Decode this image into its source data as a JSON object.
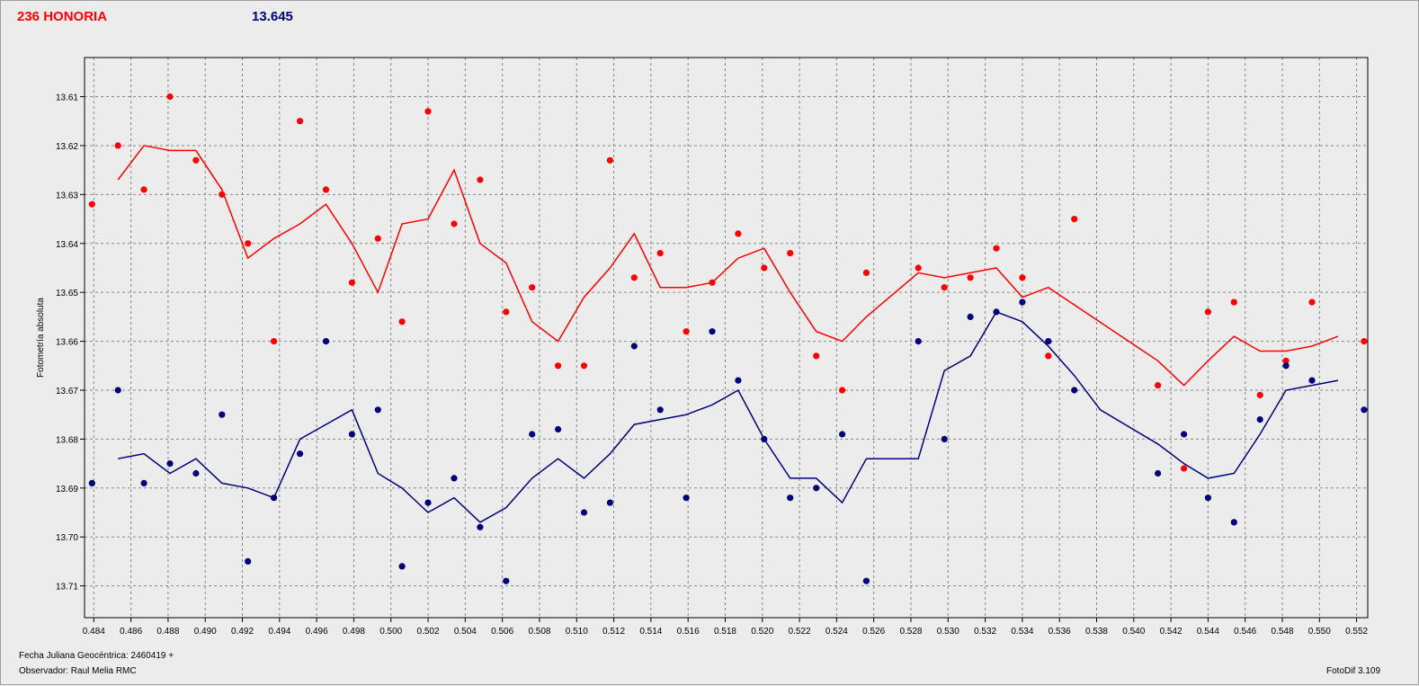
{
  "header": {
    "object_label": "236 HONORIA",
    "magnitude_label": "13.645"
  },
  "footer": {
    "jd_label": "Fecha Juliana Geocéntrica: 2460419 +",
    "observer_label": "Observador: Raul Melia RMC",
    "software_label": "FotoDif 3.109"
  },
  "colors": {
    "series_red": "#ff0000",
    "series_blue": "#00007a",
    "grid": "#888888",
    "plot_bg": "#ececec"
  },
  "chart_data": {
    "type": "scatter",
    "title": "",
    "xlabel": "",
    "ylabel": "Fotometría absoluta",
    "xlim": [
      0.4835,
      0.5526
    ],
    "ylim": [
      13.602,
      13.7165
    ],
    "y_inverted": true,
    "grid": true,
    "x_ticks": [
      "0.484",
      "0.486",
      "0.488",
      "0.490",
      "0.492",
      "0.494",
      "0.496",
      "0.498",
      "0.500",
      "0.502",
      "0.504",
      "0.506",
      "0.508",
      "0.510",
      "0.512",
      "0.514",
      "0.516",
      "0.518",
      "0.520",
      "0.522",
      "0.524",
      "0.526",
      "0.528",
      "0.530",
      "0.532",
      "0.534",
      "0.536",
      "0.538",
      "0.540",
      "0.542",
      "0.544",
      "0.546",
      "0.548",
      "0.550",
      "0.552"
    ],
    "y_ticks": [
      "13.61",
      "13.62",
      "13.63",
      "13.64",
      "13.65",
      "13.66",
      "13.67",
      "13.68",
      "13.69",
      "13.70",
      "13.71"
    ],
    "series": [
      {
        "color": "#ff0000",
        "points": [
          [
            0.4839,
            13.632
          ],
          [
            0.4853,
            13.62
          ],
          [
            0.4867,
            13.629
          ],
          [
            0.4881,
            13.61
          ],
          [
            0.4895,
            13.623
          ],
          [
            0.4909,
            13.63
          ],
          [
            0.4923,
            13.64
          ],
          [
            0.4937,
            13.66
          ],
          [
            0.4951,
            13.615
          ],
          [
            0.4965,
            13.629
          ],
          [
            0.4979,
            13.648
          ],
          [
            0.4993,
            13.639
          ],
          [
            0.5006,
            13.656
          ],
          [
            0.502,
            13.613
          ],
          [
            0.5034,
            13.636
          ],
          [
            0.5048,
            13.627
          ],
          [
            0.5062,
            13.654
          ],
          [
            0.5076,
            13.649
          ],
          [
            0.509,
            13.665
          ],
          [
            0.5104,
            13.665
          ],
          [
            0.5118,
            13.623
          ],
          [
            0.5131,
            13.647
          ],
          [
            0.5145,
            13.642
          ],
          [
            0.5159,
            13.658
          ],
          [
            0.5173,
            13.648
          ],
          [
            0.5187,
            13.638
          ],
          [
            0.5201,
            13.645
          ],
          [
            0.5215,
            13.642
          ],
          [
            0.5229,
            13.663
          ],
          [
            0.5243,
            13.67
          ],
          [
            0.5256,
            13.646
          ],
          [
            0.5284,
            13.645
          ],
          [
            0.5298,
            13.649
          ],
          [
            0.5312,
            13.647
          ],
          [
            0.5326,
            13.641
          ],
          [
            0.534,
            13.647
          ],
          [
            0.5354,
            13.663
          ],
          [
            0.5368,
            13.635
          ],
          [
            0.5413,
            13.669
          ],
          [
            0.5427,
            13.686
          ],
          [
            0.544,
            13.654
          ],
          [
            0.5454,
            13.652
          ],
          [
            0.5468,
            13.671
          ],
          [
            0.5482,
            13.664
          ],
          [
            0.5496,
            13.652
          ],
          [
            0.5524,
            13.66
          ]
        ],
        "trend": [
          [
            0.4853,
            13.627
          ],
          [
            0.4867,
            13.62
          ],
          [
            0.4881,
            13.621
          ],
          [
            0.4895,
            13.621
          ],
          [
            0.4909,
            13.629
          ],
          [
            0.4923,
            13.643
          ],
          [
            0.4937,
            13.639
          ],
          [
            0.4951,
            13.636
          ],
          [
            0.4965,
            13.632
          ],
          [
            0.4979,
            13.64
          ],
          [
            0.4993,
            13.65
          ],
          [
            0.5006,
            13.636
          ],
          [
            0.502,
            13.635
          ],
          [
            0.5034,
            13.625
          ],
          [
            0.5048,
            13.64
          ],
          [
            0.5062,
            13.644
          ],
          [
            0.5076,
            13.656
          ],
          [
            0.509,
            13.66
          ],
          [
            0.5104,
            13.651
          ],
          [
            0.5118,
            13.645
          ],
          [
            0.5131,
            13.638
          ],
          [
            0.5145,
            13.649
          ],
          [
            0.5159,
            13.649
          ],
          [
            0.5173,
            13.648
          ],
          [
            0.5187,
            13.643
          ],
          [
            0.5201,
            13.641
          ],
          [
            0.5215,
            13.65
          ],
          [
            0.5229,
            13.658
          ],
          [
            0.5243,
            13.66
          ],
          [
            0.5256,
            13.655
          ],
          [
            0.5284,
            13.646
          ],
          [
            0.5298,
            13.647
          ],
          [
            0.5312,
            13.646
          ],
          [
            0.5326,
            13.645
          ],
          [
            0.534,
            13.651
          ],
          [
            0.5354,
            13.649
          ],
          [
            0.5413,
            13.664
          ],
          [
            0.5427,
            13.669
          ],
          [
            0.544,
            13.664
          ],
          [
            0.5454,
            13.659
          ],
          [
            0.5468,
            13.662
          ],
          [
            0.5482,
            13.662
          ],
          [
            0.5496,
            13.661
          ],
          [
            0.551,
            13.659
          ]
        ]
      },
      {
        "color": "#00007a",
        "points": [
          [
            0.4839,
            13.689
          ],
          [
            0.4853,
            13.67
          ],
          [
            0.4867,
            13.689
          ],
          [
            0.4881,
            13.685
          ],
          [
            0.4895,
            13.687
          ],
          [
            0.4909,
            13.675
          ],
          [
            0.4923,
            13.705
          ],
          [
            0.4937,
            13.692
          ],
          [
            0.4951,
            13.683
          ],
          [
            0.4965,
            13.66
          ],
          [
            0.4979,
            13.679
          ],
          [
            0.4993,
            13.674
          ],
          [
            0.5006,
            13.706
          ],
          [
            0.502,
            13.693
          ],
          [
            0.5034,
            13.688
          ],
          [
            0.5048,
            13.698
          ],
          [
            0.5062,
            13.709
          ],
          [
            0.5076,
            13.679
          ],
          [
            0.509,
            13.678
          ],
          [
            0.5104,
            13.695
          ],
          [
            0.5118,
            13.693
          ],
          [
            0.5131,
            13.661
          ],
          [
            0.5145,
            13.674
          ],
          [
            0.5159,
            13.692
          ],
          [
            0.5173,
            13.658
          ],
          [
            0.5187,
            13.668
          ],
          [
            0.5201,
            13.68
          ],
          [
            0.5215,
            13.692
          ],
          [
            0.5229,
            13.69
          ],
          [
            0.5243,
            13.679
          ],
          [
            0.5256,
            13.709
          ],
          [
            0.5284,
            13.66
          ],
          [
            0.5298,
            13.68
          ],
          [
            0.5312,
            13.655
          ],
          [
            0.5326,
            13.654
          ],
          [
            0.534,
            13.652
          ],
          [
            0.5354,
            13.66
          ],
          [
            0.5368,
            13.67
          ],
          [
            0.5413,
            13.687
          ],
          [
            0.5427,
            13.679
          ],
          [
            0.544,
            13.692
          ],
          [
            0.5454,
            13.697
          ],
          [
            0.5468,
            13.676
          ],
          [
            0.5482,
            13.665
          ],
          [
            0.5496,
            13.668
          ],
          [
            0.5524,
            13.674
          ]
        ],
        "trend": [
          [
            0.4853,
            13.684
          ],
          [
            0.4867,
            13.683
          ],
          [
            0.4881,
            13.687
          ],
          [
            0.4895,
            13.684
          ],
          [
            0.4909,
            13.689
          ],
          [
            0.4923,
            13.69
          ],
          [
            0.4937,
            13.692
          ],
          [
            0.4951,
            13.68
          ],
          [
            0.4965,
            13.677
          ],
          [
            0.4979,
            13.674
          ],
          [
            0.4993,
            13.687
          ],
          [
            0.5006,
            13.69
          ],
          [
            0.502,
            13.695
          ],
          [
            0.5034,
            13.692
          ],
          [
            0.5048,
            13.697
          ],
          [
            0.5062,
            13.694
          ],
          [
            0.5076,
            13.688
          ],
          [
            0.509,
            13.684
          ],
          [
            0.5104,
            13.688
          ],
          [
            0.5118,
            13.683
          ],
          [
            0.5131,
            13.677
          ],
          [
            0.5145,
            13.676
          ],
          [
            0.5159,
            13.675
          ],
          [
            0.5173,
            13.673
          ],
          [
            0.5187,
            13.67
          ],
          [
            0.5201,
            13.68
          ],
          [
            0.5215,
            13.688
          ],
          [
            0.5229,
            13.688
          ],
          [
            0.5243,
            13.693
          ],
          [
            0.5256,
            13.684
          ],
          [
            0.5284,
            13.684
          ],
          [
            0.5298,
            13.666
          ],
          [
            0.5312,
            13.663
          ],
          [
            0.5326,
            13.654
          ],
          [
            0.534,
            13.656
          ],
          [
            0.5354,
            13.661
          ],
          [
            0.5368,
            13.667
          ],
          [
            0.5382,
            13.674
          ],
          [
            0.5413,
            13.681
          ],
          [
            0.5427,
            13.685
          ],
          [
            0.544,
            13.688
          ],
          [
            0.5454,
            13.687
          ],
          [
            0.5468,
            13.679
          ],
          [
            0.5482,
            13.67
          ],
          [
            0.5496,
            13.669
          ],
          [
            0.551,
            13.668
          ]
        ]
      }
    ]
  }
}
